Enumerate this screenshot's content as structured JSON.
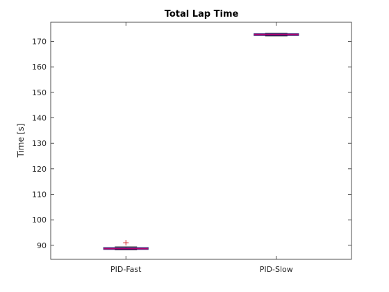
{
  "chart_data": {
    "type": "box",
    "title": "Total Lap Time",
    "xlabel": "",
    "ylabel": "Time [s]",
    "ylim": [
      84.5,
      177.5
    ],
    "yticks": [
      90,
      100,
      110,
      120,
      130,
      140,
      150,
      160,
      170
    ],
    "categories": [
      "PID-Fast",
      "PID-Slow"
    ],
    "boxes": [
      {
        "category": "PID-Fast",
        "q1": 88.4,
        "median": 88.7,
        "q3": 89.1,
        "whisker_low": 88.2,
        "whisker_high": 89.4,
        "outliers": [
          91.0
        ]
      },
      {
        "category": "PID-Slow",
        "q1": 172.3,
        "median": 172.7,
        "q3": 173.0,
        "whisker_low": 172.1,
        "whisker_high": 173.2,
        "outliers": []
      }
    ],
    "grid": false,
    "colors": {
      "box": "#2e2e7a",
      "median": "#b0006e",
      "whisker": "#000000",
      "outlier": "#d22020"
    }
  }
}
